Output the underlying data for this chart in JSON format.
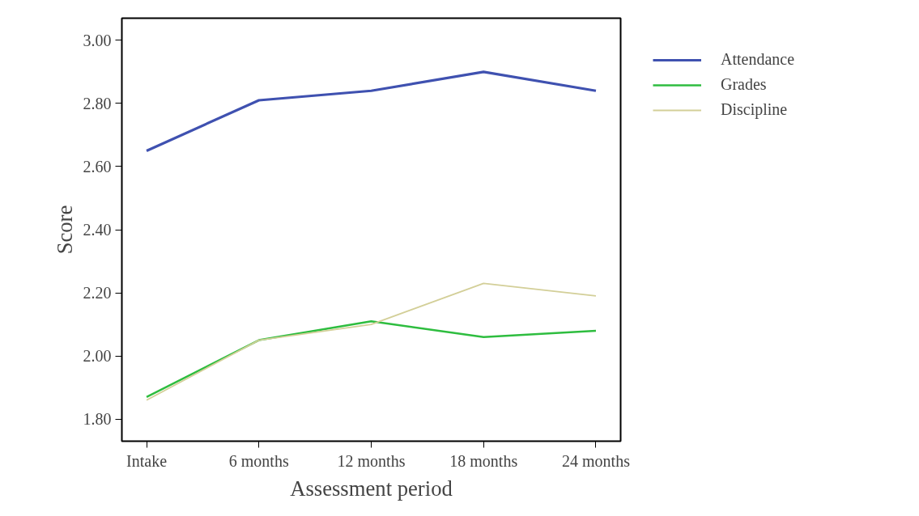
{
  "chart_data": {
    "type": "line",
    "xlabel": "Assessment period",
    "ylabel": "Score",
    "categories": [
      "Intake",
      "6 months",
      "12 months",
      "18 months",
      "24 months"
    ],
    "series": [
      {
        "name": "Attendance",
        "color": "#3f51b0",
        "values": [
          2.65,
          2.81,
          2.84,
          2.9,
          2.84
        ]
      },
      {
        "name": "Grades",
        "color": "#2ebd3f",
        "values": [
          1.87,
          2.05,
          2.11,
          2.06,
          2.08
        ]
      },
      {
        "name": "Discipline",
        "color": "#d3cf98",
        "values": [
          1.86,
          2.05,
          2.1,
          2.23,
          2.19
        ]
      }
    ],
    "ylim": [
      1.73,
      3.07
    ],
    "yticks": [
      {
        "value": 1.8,
        "label": "1.80"
      },
      {
        "value": 2.0,
        "label": "2.00"
      },
      {
        "value": 2.2,
        "label": "2.20"
      },
      {
        "value": 2.4,
        "label": "2.40"
      },
      {
        "value": 2.6,
        "label": "2.60"
      },
      {
        "value": 2.8,
        "label": "2.80"
      },
      {
        "value": 3.0,
        "label": "3.00"
      }
    ],
    "grid": false,
    "legend": "right",
    "marker": "none",
    "line_style": "solid"
  }
}
